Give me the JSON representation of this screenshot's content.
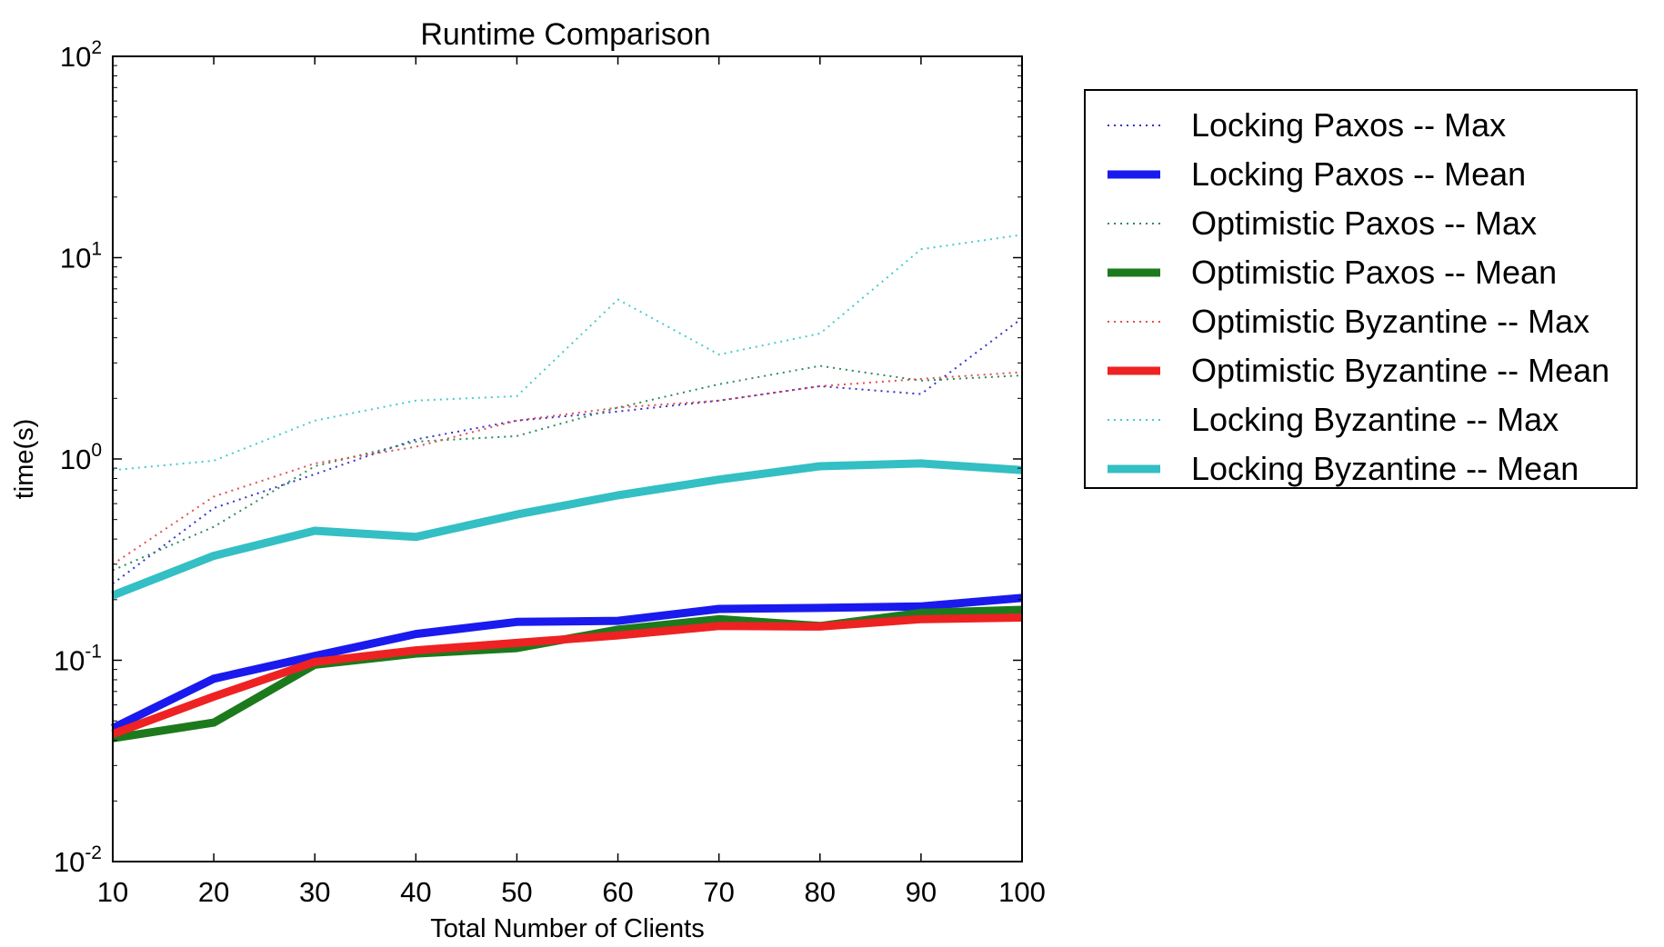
{
  "chart_data": {
    "type": "line",
    "title": "Runtime Comparison",
    "xlabel": "Total Number of Clients",
    "ylabel": "time(s)",
    "yscale": "log",
    "xlim": [
      10,
      100
    ],
    "ylim": [
      0.01,
      100
    ],
    "x": [
      10,
      20,
      30,
      40,
      50,
      60,
      70,
      80,
      90,
      100
    ],
    "x_tick_labels": [
      "10",
      "20",
      "30",
      "40",
      "50",
      "60",
      "70",
      "80",
      "90",
      "100"
    ],
    "y_ticks": [
      {
        "base": "10",
        "exp": "-2",
        "value": 0.01
      },
      {
        "base": "10",
        "exp": "-1",
        "value": 0.1
      },
      {
        "base": "10",
        "exp": "0",
        "value": 1
      },
      {
        "base": "10",
        "exp": "1",
        "value": 10
      },
      {
        "base": "10",
        "exp": "2",
        "value": 100
      }
    ],
    "grid": false,
    "legend_position": "outside right, top",
    "series": [
      {
        "name": "Locking Paxos -- Max",
        "style": "dotted",
        "color": "#3333cc",
        "values": [
          0.24,
          0.57,
          0.84,
          1.25,
          1.55,
          1.72,
          1.95,
          2.3,
          2.1,
          5.0
        ]
      },
      {
        "name": "Locking Paxos -- Mean",
        "style": "solid",
        "color": "#1a1aee",
        "values": [
          0.046,
          0.081,
          0.105,
          0.135,
          0.155,
          0.157,
          0.18,
          0.182,
          0.185,
          0.204
        ]
      },
      {
        "name": "Optimistic Paxos -- Max",
        "style": "dotted",
        "color": "#2e8b57",
        "values": [
          0.28,
          0.46,
          0.92,
          1.22,
          1.3,
          1.8,
          2.35,
          2.9,
          2.45,
          2.6
        ]
      },
      {
        "name": "Optimistic Paxos -- Mean",
        "style": "solid",
        "color": "#1c7a1c",
        "values": [
          0.041,
          0.049,
          0.095,
          0.108,
          0.115,
          0.142,
          0.16,
          0.148,
          0.172,
          0.178
        ]
      },
      {
        "name": "Optimistic Byzantine -- Max",
        "style": "dotted",
        "color": "#e05050",
        "values": [
          0.3,
          0.65,
          0.95,
          1.15,
          1.55,
          1.8,
          1.95,
          2.3,
          2.5,
          2.7
        ]
      },
      {
        "name": "Optimistic Byzantine -- Mean",
        "style": "solid",
        "color": "#ee2222",
        "values": [
          0.043,
          0.066,
          0.098,
          0.112,
          0.122,
          0.133,
          0.148,
          0.147,
          0.16,
          0.163
        ]
      },
      {
        "name": "Locking Byzantine -- Max",
        "style": "dotted",
        "color": "#44cccc",
        "values": [
          0.88,
          0.98,
          1.55,
          1.95,
          2.05,
          6.2,
          3.3,
          4.2,
          11.0,
          13.0
        ]
      },
      {
        "name": "Locking Byzantine -- Mean",
        "style": "solid",
        "color": "#33bfc4",
        "values": [
          0.21,
          0.33,
          0.44,
          0.41,
          0.53,
          0.66,
          0.79,
          0.92,
          0.95,
          0.88
        ]
      }
    ]
  }
}
